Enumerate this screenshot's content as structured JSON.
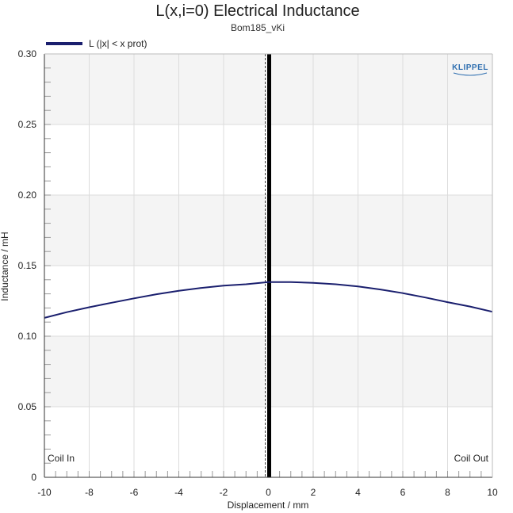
{
  "chart_data": {
    "type": "line",
    "title": "L(x,i=0) Electrical Inductance",
    "subtitle": "Bom185_vKi",
    "xlabel": "Displacement / mm",
    "ylabel": "Inductance / mH",
    "xlim": [
      -10,
      10
    ],
    "ylim": [
      0,
      0.3
    ],
    "x_ticks": [
      -10,
      -8,
      -6,
      -4,
      -2,
      0,
      2,
      4,
      6,
      8,
      10
    ],
    "x_tick_labels": [
      "-10",
      "-8",
      "-6",
      "-4",
      "-2",
      "0",
      "2",
      "4",
      "6",
      "8",
      "10"
    ],
    "y_ticks": [
      0,
      0.05,
      0.1,
      0.15,
      0.2,
      0.25,
      0.3
    ],
    "y_tick_labels": [
      "0",
      "0.05",
      "0.10",
      "0.15",
      "0.20",
      "0.25",
      "0.30"
    ],
    "grid": true,
    "legend_position": "top-left",
    "annotations": {
      "left": "Coil In",
      "right": "Coil Out"
    },
    "logo": "KLIPPEL",
    "rest_position_x": 0,
    "series": [
      {
        "name": "L (|x| < x prot)",
        "color": "#1a1f6e",
        "x": [
          -10,
          -9,
          -8,
          -7,
          -6,
          -5,
          -4,
          -3,
          -2,
          -1,
          0,
          1,
          2,
          3,
          4,
          5,
          6,
          7,
          8,
          9,
          10
        ],
        "y": [
          0.113,
          0.117,
          0.1205,
          0.1237,
          0.1268,
          0.1297,
          0.1322,
          0.1342,
          0.1358,
          0.1368,
          0.1383,
          0.1383,
          0.1378,
          0.1368,
          0.1352,
          0.1331,
          0.1305,
          0.1274,
          0.1241,
          0.121,
          0.1173
        ]
      }
    ]
  },
  "colors": {
    "series": "#1a1f6e",
    "band": "#f4f4f4",
    "grid": "#dcdcdc",
    "rest_line": "#000000",
    "logo": "#2f6fb0"
  }
}
